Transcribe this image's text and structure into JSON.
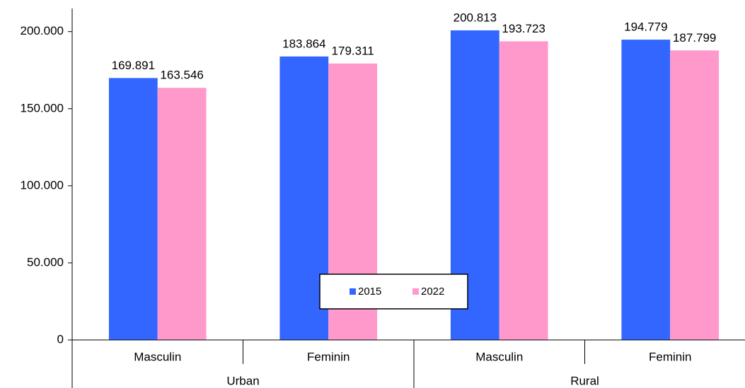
{
  "chart_data": {
    "type": "bar",
    "categories": [
      "Masculin",
      "Feminin",
      "Masculin",
      "Feminin"
    ],
    "groups": [
      "Urban",
      "Rural"
    ],
    "series": [
      {
        "name": "2015",
        "color": "#3366ff",
        "values": [
          169891,
          183864,
          200813,
          194779
        ],
        "value_labels": [
          "169.891",
          "183.864",
          "200.813",
          "194.779"
        ]
      },
      {
        "name": "2022",
        "color": "#ff99cc",
        "values": [
          163546,
          179311,
          193723,
          187799
        ],
        "value_labels": [
          "163.546",
          "179.311",
          "193.723",
          "187.799"
        ]
      }
    ],
    "ylim": [
      0,
      215000
    ],
    "yticks": [
      0,
      {
        "value": 50000,
        "label": "50.000"
      },
      {
        "value": 100000,
        "label": "100.000"
      },
      {
        "value": 150000,
        "label": "150.000"
      },
      {
        "value": 200000,
        "label": "200.000"
      }
    ],
    "grid": false,
    "legend": "center"
  }
}
